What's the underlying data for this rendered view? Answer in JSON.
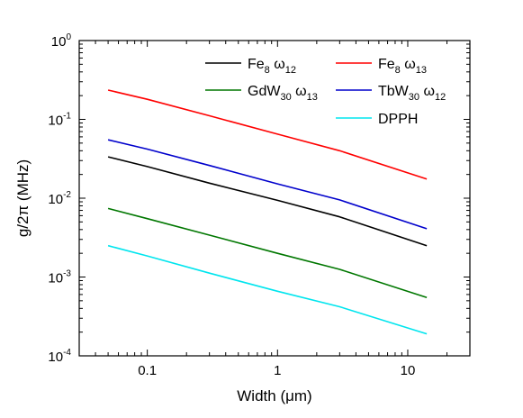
{
  "chart_data": {
    "type": "line",
    "xlabel": "Width (μm)",
    "ylabel": "g/2π (MHz)",
    "xscale": "log",
    "yscale": "log",
    "xlim": [
      0.03,
      30
    ],
    "ylim": [
      0.0001,
      1
    ],
    "xticks": [
      {
        "value": 0.1,
        "label": "0.1"
      },
      {
        "value": 1,
        "label": "1"
      },
      {
        "value": 10,
        "label": "10"
      }
    ],
    "yticks": [
      {
        "value": 1,
        "mant": "10",
        "exp": "0"
      },
      {
        "value": 0.1,
        "mant": "10",
        "exp": "-1"
      },
      {
        "value": 0.01,
        "mant": "10",
        "exp": "-2"
      },
      {
        "value": 0.001,
        "mant": "10",
        "exp": "-3"
      },
      {
        "value": 0.0001,
        "mant": "10",
        "exp": "-4"
      }
    ],
    "grid": false,
    "legend_position": "top-right",
    "series": [
      {
        "name": "Fe8 ω12",
        "base": "Fe",
        "sub1": "8",
        "greek": "ω",
        "sub2": "12",
        "color": "#000000",
        "x": [
          0.05,
          0.1,
          0.3,
          1,
          3,
          14
        ],
        "y": [
          0.0335,
          0.0252,
          0.0155,
          0.0094,
          0.0058,
          0.0025
        ]
      },
      {
        "name": "Fe8 ω13",
        "base": "Fe",
        "sub1": "8",
        "greek": "ω",
        "sub2": "13",
        "color": "#ff0000",
        "x": [
          0.05,
          0.1,
          0.3,
          1,
          3,
          14
        ],
        "y": [
          0.235,
          0.18,
          0.111,
          0.065,
          0.04,
          0.0175
        ]
      },
      {
        "name": "GdW30 ω13",
        "base": "GdW",
        "sub1": "30",
        "greek": "ω",
        "sub2": "13",
        "color": "#007700",
        "x": [
          0.05,
          0.1,
          0.3,
          1,
          3,
          14
        ],
        "y": [
          0.0074,
          0.0055,
          0.0034,
          0.002,
          0.00125,
          0.00055
        ]
      },
      {
        "name": "TbW30 ω12",
        "base": "TbW",
        "sub1": "30",
        "greek": "ω",
        "sub2": "12",
        "color": "#0000cc",
        "x": [
          0.05,
          0.1,
          0.3,
          1,
          3,
          14
        ],
        "y": [
          0.055,
          0.042,
          0.026,
          0.0152,
          0.0095,
          0.0041
        ]
      },
      {
        "name": "DPPH",
        "base": "DPPH",
        "sub1": "",
        "greek": "",
        "sub2": "",
        "color": "#00e5ee",
        "x": [
          0.05,
          0.1,
          0.3,
          1,
          3,
          14
        ],
        "y": [
          0.0025,
          0.00185,
          0.00112,
          0.00066,
          0.00042,
          0.00019
        ]
      }
    ]
  }
}
